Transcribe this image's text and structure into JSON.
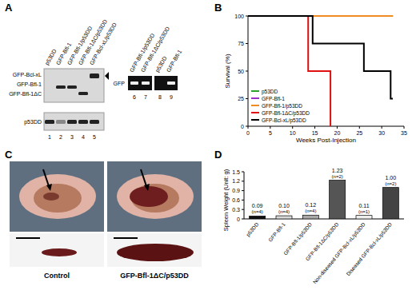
{
  "panel_labels": [
    "A",
    "B",
    "C",
    "D"
  ],
  "blot": {
    "lanes": [
      "p53DD",
      "GFP-Bfl-1",
      "GFP-Bfl-1/p53DD",
      "GFP-Bfl-1ΔC/p53DD",
      "GFP-Bcl-xL/p53DD"
    ],
    "bands": [
      "GFP-Bcl-xL",
      "GFP-Bfl-1",
      "GFP-Bfl-1ΔC"
    ],
    "loading": "p53DD",
    "lane_numbers": [
      "1",
      "2",
      "3",
      "4",
      "5"
    ]
  },
  "pcr": {
    "lanes": [
      "GFP-Bfl-1/p53DD",
      "GFP-Bfl-1ΔC/p53DD",
      "p53DD",
      "GFP-Bfl-1"
    ],
    "band": "GFP",
    "lane_numbers": [
      "6",
      "7",
      "8",
      "9"
    ]
  },
  "photos": {
    "labels": [
      "Control",
      "GFP-Bfl-1ΔC/p53DD"
    ]
  },
  "chart_data": [
    {
      "type": "line",
      "x_label": "Weeks Post-Injection",
      "y_label": "Survival (%)",
      "xlim": [
        0,
        35
      ],
      "ylim": [
        0,
        100
      ],
      "xticks": [
        0,
        5,
        10,
        15,
        20,
        25,
        30,
        35
      ],
      "yticks": [
        0,
        25,
        50,
        75,
        100
      ],
      "line_style": "step",
      "legend": "lower left",
      "series": [
        {
          "name": "p53DD",
          "color": "#2ca02c",
          "x": [
            0,
            32.5
          ],
          "values": [
            100,
            100
          ]
        },
        {
          "name": "GFP-Bfl-1",
          "color": "#9b30c8",
          "x": [
            0,
            32.5
          ],
          "values": [
            100,
            100
          ]
        },
        {
          "name": "GFP-Bfl-1/p53DD",
          "color": "#f08a24",
          "x": [
            0,
            32.5
          ],
          "values": [
            100,
            100
          ]
        },
        {
          "name": "GFP-Bfl-1ΔC/p53DD",
          "color": "#e01010",
          "x": [
            0,
            13.5,
            18.5
          ],
          "values": [
            100,
            50,
            0
          ]
        },
        {
          "name": "GFP-Bcl-xL/p53DD",
          "color": "#000000",
          "x": [
            0,
            14.5,
            26,
            32,
            32.5
          ],
          "values": [
            100,
            75,
            50,
            25,
            25
          ]
        }
      ]
    },
    {
      "type": "bar",
      "y_label": "Spleen Weight (Unit: g)",
      "categories": [
        "p53DD",
        "GFP-Bfl-1",
        "GFP-Bfl-1/p53DD",
        "GFP-Bfl-1ΔC/p53DD",
        "Non-diseased GFP-Bcl-xL/p53DD",
        "Diseased GFP-Bcl-xL/p53DD"
      ],
      "values": [
        0.09,
        0.1,
        0.12,
        1.23,
        0.11,
        1.0
      ],
      "value_labels": [
        "0.09",
        "0.10",
        "0.12",
        "1.23",
        "0.11",
        "1.00"
      ],
      "annotations": [
        "(n=4)",
        "(n=4)",
        "(n=4)",
        "(n=2)",
        "(n=1)",
        "(n=2)"
      ],
      "colors": [
        "#111111",
        "#d8d8d8",
        "#a8a8a8",
        "#555555",
        "#eeeeee",
        "#444444"
      ],
      "ylim": [
        0,
        1.5
      ],
      "yticks": [
        0,
        0.3,
        0.6,
        0.9,
        1.2,
        1.5
      ],
      "data_labels": true
    }
  ]
}
